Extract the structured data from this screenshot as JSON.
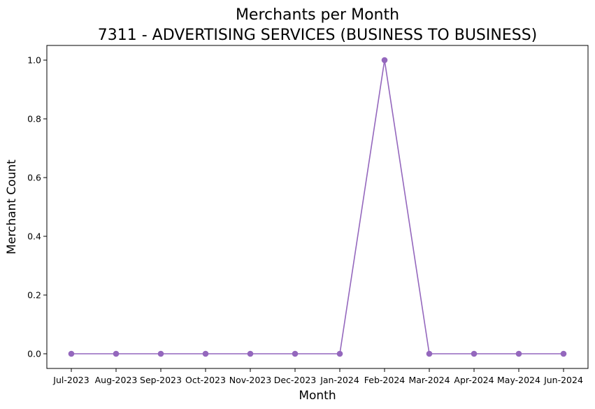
{
  "chart_data": {
    "type": "line",
    "title_line1": "Merchants per Month",
    "title_line2": "7311 - ADVERTISING SERVICES (BUSINESS TO BUSINESS)",
    "xlabel": "Month",
    "ylabel": "Merchant Count",
    "categories": [
      "Jul-2023",
      "Aug-2023",
      "Sep-2023",
      "Oct-2023",
      "Nov-2023",
      "Dec-2023",
      "Jan-2024",
      "Feb-2024",
      "Mar-2024",
      "Apr-2024",
      "May-2024",
      "Jun-2024"
    ],
    "values": [
      0,
      0,
      0,
      0,
      0,
      0,
      0,
      1,
      0,
      0,
      0,
      0
    ],
    "yticks": [
      "0.0",
      "0.2",
      "0.4",
      "0.6",
      "0.8",
      "1.0"
    ],
    "ylim": [
      -0.05,
      1.05
    ],
    "grid": false,
    "color": "#9467bd"
  }
}
